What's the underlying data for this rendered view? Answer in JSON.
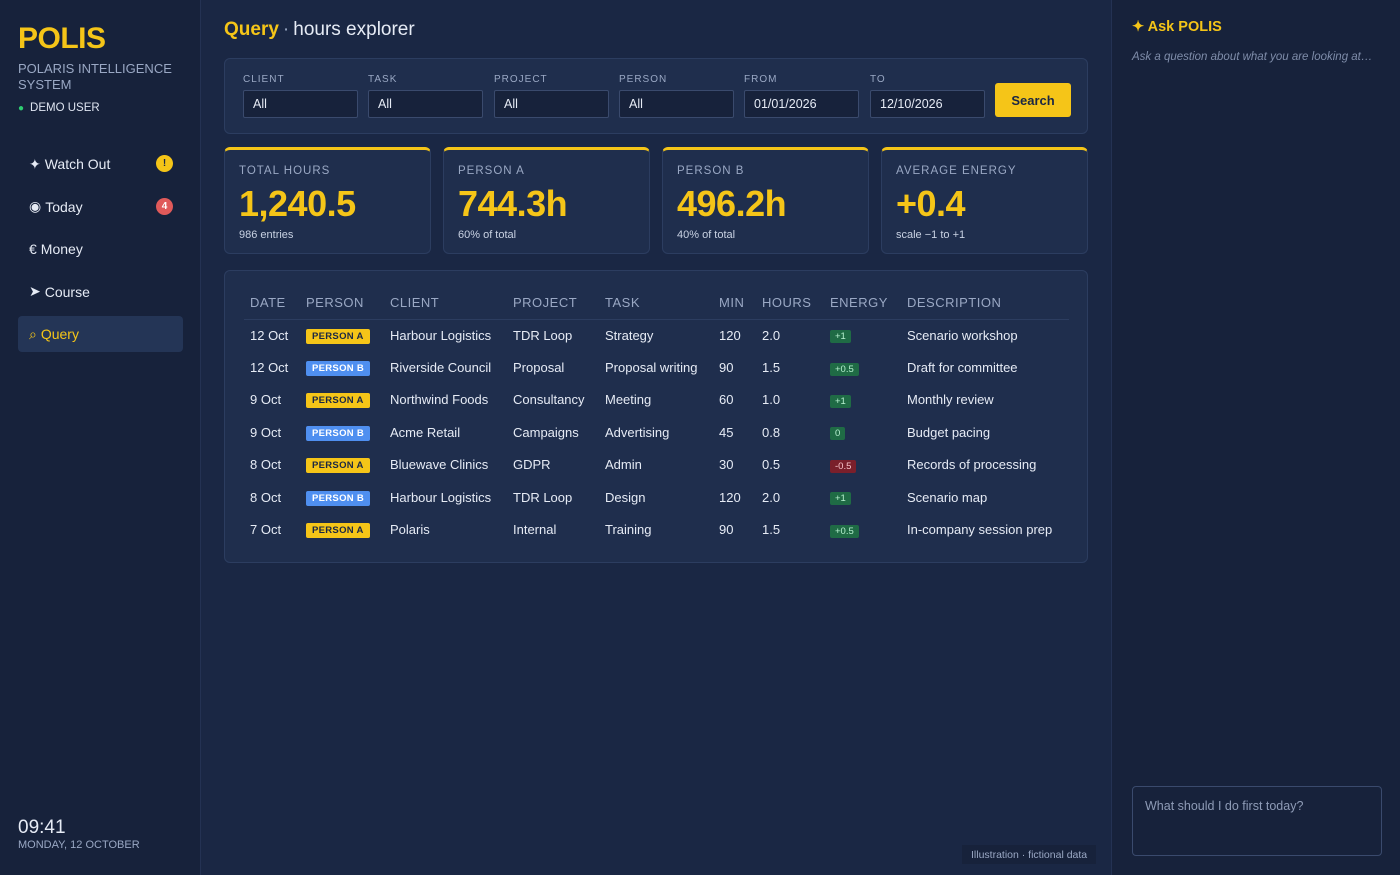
{
  "app": {
    "logo": "POLIS",
    "subtitle": "POLARIS INTELLIGENCE SYSTEM",
    "user": "DEMO USER"
  },
  "nav": [
    {
      "icon": "✦",
      "label": "Watch Out",
      "badge": "!"
    },
    {
      "icon": "◉",
      "label": "Today",
      "badge": "4"
    },
    {
      "icon": "€",
      "label": "Money",
      "badge": ""
    },
    {
      "icon": "➤",
      "label": "Course",
      "badge": ""
    },
    {
      "icon": "⌕",
      "label": "Query",
      "badge": ""
    }
  ],
  "clock": {
    "time": "09:41",
    "date": "MONDAY, 12 OCTOBER"
  },
  "page": {
    "title_strong": "Query",
    "separator": "·",
    "title_rest": "hours explorer"
  },
  "filters": {
    "client": {
      "label": "CLIENT",
      "value": "All"
    },
    "task": {
      "label": "TASK",
      "value": "All"
    },
    "project": {
      "label": "PROJECT",
      "value": "All"
    },
    "person": {
      "label": "PERSON",
      "value": "All"
    },
    "from": {
      "label": "FROM",
      "value": "01/01/2026"
    },
    "to": {
      "label": "TO",
      "value": "12/10/2026"
    },
    "search_label": "Search"
  },
  "cards": [
    {
      "label": "TOTAL HOURS",
      "value": "1,240.5",
      "sub": "986 entries"
    },
    {
      "label": "PERSON A",
      "value": "744.3h",
      "sub": "60% of total"
    },
    {
      "label": "PERSON B",
      "value": "496.2h",
      "sub": "40% of total"
    },
    {
      "label": "AVERAGE ENERGY",
      "value": "+0.4",
      "sub": "scale −1 to +1"
    }
  ],
  "table": {
    "headers": [
      "DATE",
      "PERSON",
      "CLIENT",
      "PROJECT",
      "TASK",
      "MIN",
      "HOURS",
      "ENERGY",
      "DESCRIPTION"
    ],
    "rows": [
      {
        "date": "12 Oct",
        "person": "PERSON A",
        "client": "Harbour Logistics",
        "project": "TDR Loop",
        "task": "Strategy",
        "min": "120",
        "hours": "2.0",
        "energy": "+1",
        "description": "Scenario workshop"
      },
      {
        "date": "12 Oct",
        "person": "PERSON B",
        "client": "Riverside Council",
        "project": "Proposal",
        "task": "Proposal writing",
        "min": "90",
        "hours": "1.5",
        "energy": "+0.5",
        "description": "Draft for committee"
      },
      {
        "date": "9 Oct",
        "person": "PERSON A",
        "client": "Northwind Foods",
        "project": "Consultancy",
        "task": "Meeting",
        "min": "60",
        "hours": "1.0",
        "energy": "+1",
        "description": "Monthly review"
      },
      {
        "date": "9 Oct",
        "person": "PERSON B",
        "client": "Acme Retail",
        "project": "Campaigns",
        "task": "Advertising",
        "min": "45",
        "hours": "0.8",
        "energy": "0",
        "description": "Budget pacing"
      },
      {
        "date": "8 Oct",
        "person": "PERSON A",
        "client": "Bluewave Clinics",
        "project": "GDPR",
        "task": "Admin",
        "min": "30",
        "hours": "0.5",
        "energy": "-0.5",
        "description": "Records of processing"
      },
      {
        "date": "8 Oct",
        "person": "PERSON B",
        "client": "Harbour Logistics",
        "project": "TDR Loop",
        "task": "Design",
        "min": "120",
        "hours": "2.0",
        "energy": "+1",
        "description": "Scenario map"
      },
      {
        "date": "7 Oct",
        "person": "PERSON A",
        "client": "Polaris",
        "project": "Internal",
        "task": "Training",
        "min": "90",
        "hours": "1.5",
        "energy": "+0.5",
        "description": "In-company session prep"
      }
    ]
  },
  "footnote": "Illustration · fictional data",
  "assistant": {
    "title": "✦ Ask POLIS",
    "hint": "Ask a question about what you are looking at…",
    "placeholder": "What should I do first today?"
  },
  "colors": {
    "accent": "#f5c518",
    "person_a": "#f5c518",
    "person_b": "#4f8ff0",
    "energy_positive": "#1f6b45",
    "energy_negative": "#7a1f2b"
  }
}
